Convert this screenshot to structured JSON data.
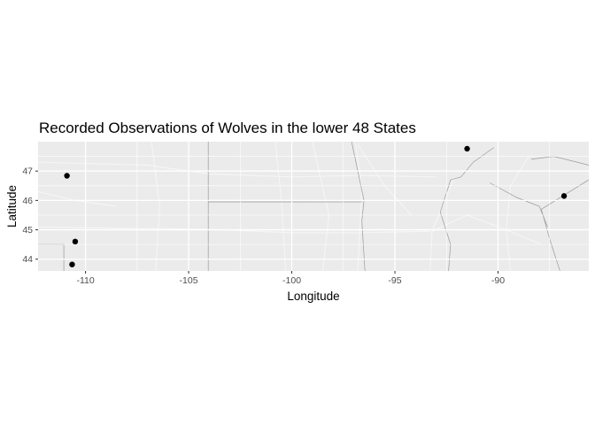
{
  "chart_data": {
    "type": "scatter",
    "title": "Recorded Observations of Wolves in the lower 48 States",
    "xlabel": "Longitude",
    "ylabel": "Latitude",
    "xlim": [
      -112.3,
      -85.6
    ],
    "ylim": [
      43.6,
      48.0
    ],
    "x_ticks": [
      -110,
      -105,
      -100,
      -95,
      -90
    ],
    "x_tick_labels": [
      "-110",
      "-105",
      "-100",
      "-95",
      "-90"
    ],
    "y_ticks": [
      44,
      45,
      46,
      47
    ],
    "y_tick_labels": [
      "44",
      "45",
      "46",
      "47"
    ],
    "grid": true,
    "background": "map-tiles-grey",
    "points": [
      {
        "x": -110.9,
        "y": 46.84
      },
      {
        "x": -110.5,
        "y": 44.6
      },
      {
        "x": -110.65,
        "y": 43.82
      },
      {
        "x": -91.5,
        "y": 47.76
      },
      {
        "x": -86.8,
        "y": 46.15
      }
    ]
  },
  "colors": {
    "panel": "#ebebeb",
    "grid_major": "#ffffff",
    "point": "#000000",
    "road": "#f5f5f5",
    "border": "#9a9a9a"
  }
}
